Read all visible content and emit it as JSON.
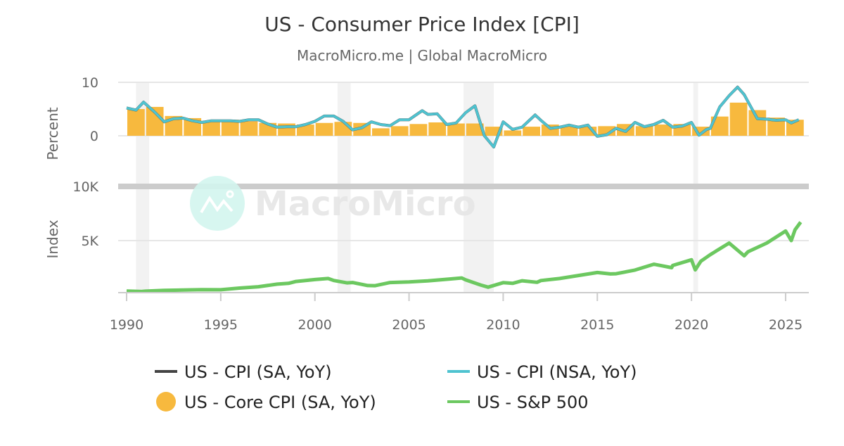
{
  "chart_data": {
    "title": "US - Consumer Price Index [CPI]",
    "subtitle": "MacroMicro.me | Global MacroMicro",
    "watermark": "MacroMicro",
    "x_ticks": [
      "1990",
      "1995",
      "2000",
      "2005",
      "2010",
      "2015",
      "2020",
      "2025"
    ],
    "x_range": [
      1990,
      2026.2
    ],
    "grid": true,
    "legend_placement": "bottom",
    "recessions": [
      [
        1990.5,
        1991.2
      ],
      [
        2001.2,
        2001.9
      ],
      [
        2007.9,
        2009.5
      ],
      [
        2020.1,
        2020.35
      ]
    ],
    "panels": [
      {
        "ylabel": "Percent",
        "y_ticks": [
          {
            "v": 10,
            "label": "10"
          },
          {
            "v": 0,
            "label": "0"
          }
        ],
        "ylim": [
          -10,
          10
        ],
        "series": [
          {
            "name": "US - Core CPI (SA, YoY)",
            "type": "bar",
            "color": "#f7b93e",
            "x": [
              1990,
              1991,
              1992,
              1993,
              1994,
              1995,
              1996,
              1997,
              1998,
              1999,
              2000,
              2001,
              2002,
              2003,
              2004,
              2005,
              2006,
              2007,
              2008,
              2009,
              2010,
              2011,
              2012,
              2013,
              2014,
              2015,
              2016,
              2017,
              2018,
              2019,
              2020,
              2021,
              2022,
              2023,
              2024,
              2025
            ],
            "y": [
              5.0,
              5.4,
              3.7,
              3.3,
              2.8,
              3.0,
              2.7,
              2.4,
              2.3,
              2.1,
              2.4,
              2.6,
              2.4,
              1.4,
              1.8,
              2.2,
              2.5,
              2.3,
              2.3,
              1.7,
              1.0,
              1.7,
              2.1,
              1.8,
              1.7,
              1.8,
              2.2,
              1.8,
              2.1,
              2.2,
              1.7,
              3.6,
              6.2,
              4.8,
              3.4,
              3.0
            ]
          },
          {
            "name": "US - CPI (SA, YoY)",
            "type": "line",
            "color": "#444444",
            "x": [
              1990,
              1990.5,
              1990.9,
              1991.5,
              1992,
              1992.5,
              1993,
              1993.5,
              1994,
              1994.5,
              1995,
              1995.5,
              1996,
              1996.5,
              1997,
              1997.5,
              1998,
              1998.5,
              1999,
              1999.5,
              2000,
              2000.5,
              2001,
              2001.5,
              2002,
              2002.5,
              2003,
              2003.5,
              2004,
              2004.5,
              2005,
              2005.7,
              2006,
              2006.5,
              2007,
              2007.5,
              2008,
              2008.5,
              2009,
              2009.5,
              2010,
              2010.5,
              2011,
              2011.7,
              2012,
              2012.5,
              2013,
              2013.5,
              2014,
              2014.5,
              2015,
              2015.5,
              2016,
              2016.5,
              2017,
              2017.5,
              2018,
              2018.5,
              2019,
              2019.5,
              2020,
              2020.4,
              2020.8,
              2021,
              2021.5,
              2022,
              2022.45,
              2022.8,
              2023,
              2023.5,
              2024,
              2024.5,
              2025,
              2025.3,
              2025.7
            ],
            "y": [
              5.2,
              4.8,
              6.3,
              4.4,
              2.6,
              3.2,
              3.3,
              2.8,
              2.5,
              2.8,
              2.8,
              2.8,
              2.7,
              3.0,
              3.0,
              2.2,
              1.6,
              1.7,
              1.7,
              2.1,
              2.7,
              3.7,
              3.7,
              2.7,
              1.1,
              1.5,
              2.6,
              2.1,
              1.9,
              3.0,
              3.0,
              4.7,
              4.0,
              4.1,
              2.1,
              2.4,
              4.3,
              5.6,
              0.0,
              -2.1,
              2.6,
              1.2,
              1.6,
              3.9,
              2.9,
              1.4,
              1.6,
              2.0,
              1.6,
              2.0,
              -0.1,
              0.2,
              1.4,
              0.8,
              2.5,
              1.7,
              2.1,
              2.9,
              1.6,
              1.8,
              2.5,
              0.1,
              1.2,
              1.4,
              5.4,
              7.5,
              9.1,
              7.7,
              6.4,
              3.2,
              3.1,
              2.9,
              3.0,
              2.4,
              3.0
            ]
          },
          {
            "name": "US - CPI (NSA, YoY)",
            "type": "line",
            "color": "#4fc3d0",
            "x": [
              1990,
              1990.5,
              1990.9,
              1991.5,
              1992,
              1992.5,
              1993,
              1993.5,
              1994,
              1994.5,
              1995,
              1995.5,
              1996,
              1996.5,
              1997,
              1997.5,
              1998,
              1998.5,
              1999,
              1999.5,
              2000,
              2000.5,
              2001,
              2001.5,
              2002,
              2002.5,
              2003,
              2003.5,
              2004,
              2004.5,
              2005,
              2005.7,
              2006,
              2006.5,
              2007,
              2007.5,
              2008,
              2008.5,
              2009,
              2009.5,
              2010,
              2010.5,
              2011,
              2011.7,
              2012,
              2012.5,
              2013,
              2013.5,
              2014,
              2014.5,
              2015,
              2015.5,
              2016,
              2016.5,
              2017,
              2017.5,
              2018,
              2018.5,
              2019,
              2019.5,
              2020,
              2020.4,
              2020.8,
              2021,
              2021.5,
              2022,
              2022.45,
              2022.8,
              2023,
              2023.5,
              2024,
              2024.5,
              2025,
              2025.3,
              2025.7
            ],
            "y": [
              5.2,
              4.8,
              6.3,
              4.4,
              2.6,
              3.2,
              3.3,
              2.8,
              2.5,
              2.8,
              2.8,
              2.8,
              2.7,
              3.0,
              3.0,
              2.2,
              1.6,
              1.7,
              1.7,
              2.1,
              2.7,
              3.7,
              3.7,
              2.7,
              1.1,
              1.5,
              2.6,
              2.1,
              1.9,
              3.0,
              3.0,
              4.7,
              4.0,
              4.1,
              2.1,
              2.4,
              4.3,
              5.6,
              0.0,
              -2.1,
              2.6,
              1.2,
              1.6,
              3.9,
              2.9,
              1.4,
              1.6,
              2.0,
              1.6,
              2.0,
              -0.1,
              0.2,
              1.4,
              0.8,
              2.5,
              1.7,
              2.1,
              2.9,
              1.6,
              1.8,
              2.5,
              0.1,
              1.2,
              1.4,
              5.4,
              7.5,
              9.1,
              7.7,
              6.4,
              3.2,
              3.1,
              2.9,
              3.0,
              2.4,
              3.0
            ]
          }
        ]
      },
      {
        "ylabel": "Index",
        "y_ticks": [
          {
            "v": 10000,
            "label": "10K"
          },
          {
            "v": 5000,
            "label": "5K"
          }
        ],
        "ylim": [
          0,
          10000
        ],
        "series": [
          {
            "name": "US - S&P 500",
            "type": "line",
            "color": "#6cc860",
            "x": [
              1990,
              1990.8,
              1991,
              1992,
              1993,
              1994,
              1995,
              1996,
              1997,
              1998,
              1998.6,
              1999,
              2000,
              2000.7,
              2001,
              2001.7,
              2002,
              2002.8,
              2003.2,
              2004,
              2005,
              2006,
              2007,
              2007.8,
              2008,
              2008.8,
              2009.2,
              2010,
              2010.5,
              2011,
              2011.8,
              2012,
              2013,
              2014,
              2015,
              2015.7,
              2016,
              2017,
              2018,
              2018.95,
              2019,
              2020,
              2020.2,
              2020.5,
              2021,
              2022,
              2022.8,
              2023,
              2024,
              2025,
              2025.3,
              2025.5,
              2025.8
            ],
            "y": [
              340,
              300,
              330,
              410,
              435,
              470,
              460,
              615,
              740,
              980,
              1050,
              1230,
              1400,
              1500,
              1320,
              1100,
              1130,
              850,
              840,
              1130,
              1180,
              1280,
              1430,
              1550,
              1380,
              900,
              700,
              1120,
              1050,
              1290,
              1150,
              1310,
              1500,
              1780,
              2050,
              1920,
              1940,
              2280,
              2820,
              2500,
              2700,
              3230,
              2300,
              3100,
              3700,
              4770,
              3600,
              3970,
              4770,
              5880,
              5000,
              6000,
              6700
            ]
          }
        ]
      }
    ],
    "legend": [
      {
        "label": "US - CPI (SA, YoY)",
        "symbol": "line",
        "color": "#444444"
      },
      {
        "label": "US - CPI (NSA, YoY)",
        "symbol": "line",
        "color": "#4fc3d0"
      },
      {
        "label": "US - Core CPI (SA, YoY)",
        "symbol": "circle",
        "color": "#f7b93e"
      },
      {
        "label": "US - S&P 500",
        "symbol": "line",
        "color": "#6cc860"
      }
    ]
  }
}
